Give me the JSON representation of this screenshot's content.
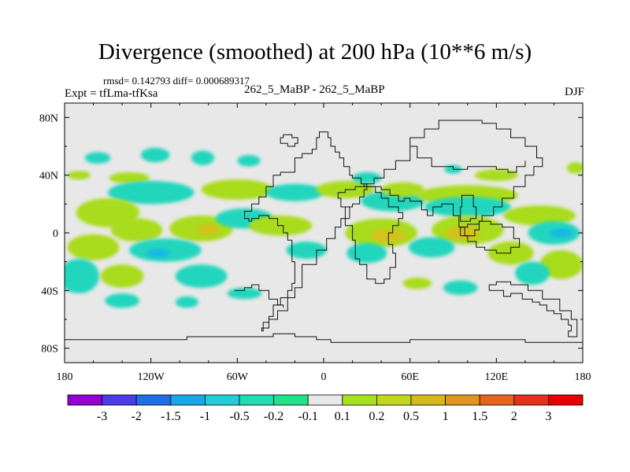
{
  "chart_data": {
    "type": "heatmap",
    "title": "Divergence (smoothed) at 200 hPa (10**6 m/s)",
    "stats_label": "rmsd= 0.142793 diff= 0.000689317",
    "experiment_label": "Expt = tfLma-tfKsa",
    "runs_label": "262_5_MaBP - 262_5_MaBP",
    "season_label": "DJF",
    "x_range": [
      -180,
      180
    ],
    "y_range": [
      -90,
      90
    ],
    "x_ticks": [
      -180,
      -120,
      -60,
      0,
      60,
      120,
      180
    ],
    "x_tick_labels": [
      "180",
      "120W",
      "60W",
      "0",
      "60E",
      "120E",
      "180"
    ],
    "y_ticks": [
      80,
      40,
      0,
      -40,
      -80
    ],
    "y_tick_labels": [
      "80N",
      "40N",
      "0",
      "40S",
      "80S"
    ],
    "colorbar": {
      "labels": [
        "-3",
        "-2",
        "-1.5",
        "-1",
        "-0.5",
        "-0.2",
        "-0.1",
        "0.1",
        "0.2",
        "0.5",
        "1",
        "1.5",
        "2",
        "3"
      ],
      "colors": [
        "#9400d3",
        "#4b3ce6",
        "#1f6ee8",
        "#18a6e6",
        "#22ccd9",
        "#20dcb4",
        "#1ee38a",
        "#e8e8e8",
        "#a6e21e",
        "#c2d81e",
        "#d4b81e",
        "#de961e",
        "#e6641e",
        "#e6301e",
        "#e60000"
      ]
    },
    "field_blobs": [
      {
        "lon": -157,
        "lat": 52,
        "rx": 9,
        "ry": 4,
        "v": -0.3
      },
      {
        "lon": -117,
        "lat": 54,
        "rx": 10,
        "ry": 5,
        "v": -0.3
      },
      {
        "lon": -84,
        "lat": 52,
        "rx": 8,
        "ry": 5,
        "v": -0.3
      },
      {
        "lon": -52,
        "lat": 50,
        "rx": 8,
        "ry": 4,
        "v": -0.3
      },
      {
        "lon": -170,
        "lat": 40,
        "rx": 8,
        "ry": 3,
        "v": 0.3
      },
      {
        "lon": -135,
        "lat": 38,
        "rx": 14,
        "ry": 4,
        "v": 0.3
      },
      {
        "lon": -120,
        "lat": 28,
        "rx": 30,
        "ry": 8,
        "v": -0.3
      },
      {
        "lon": -60,
        "lat": 30,
        "rx": 25,
        "ry": 7,
        "v": 0.3
      },
      {
        "lon": -150,
        "lat": 14,
        "rx": 22,
        "ry": 10,
        "v": 0.3
      },
      {
        "lon": -130,
        "lat": 2,
        "rx": 18,
        "ry": 8,
        "v": 0.3
      },
      {
        "lon": -85,
        "lat": 3,
        "rx": 22,
        "ry": 9,
        "v": 0.3
      },
      {
        "lon": -80,
        "lat": 2,
        "rx": 8,
        "ry": 4,
        "v": 0.6
      },
      {
        "lon": -55,
        "lat": 10,
        "rx": 20,
        "ry": 7,
        "v": -0.3
      },
      {
        "lon": -160,
        "lat": -10,
        "rx": 18,
        "ry": 9,
        "v": 0.3
      },
      {
        "lon": -110,
        "lat": -12,
        "rx": 25,
        "ry": 8,
        "v": -0.3
      },
      {
        "lon": -115,
        "lat": -14,
        "rx": 8,
        "ry": 3,
        "v": -0.6
      },
      {
        "lon": -170,
        "lat": -30,
        "rx": 14,
        "ry": 12,
        "v": -0.3
      },
      {
        "lon": -140,
        "lat": -30,
        "rx": 15,
        "ry": 8,
        "v": 0.3
      },
      {
        "lon": -85,
        "lat": -30,
        "rx": 18,
        "ry": 8,
        "v": -0.3
      },
      {
        "lon": -140,
        "lat": -47,
        "rx": 12,
        "ry": 5,
        "v": -0.3
      },
      {
        "lon": -95,
        "lat": -48,
        "rx": 8,
        "ry": 4,
        "v": -0.3
      },
      {
        "lon": -55,
        "lat": -42,
        "rx": 12,
        "ry": 4,
        "v": -0.3
      },
      {
        "lon": -20,
        "lat": 28,
        "rx": 20,
        "ry": 6,
        "v": -0.3
      },
      {
        "lon": -30,
        "lat": 5,
        "rx": 22,
        "ry": 7,
        "v": 0.3
      },
      {
        "lon": -12,
        "lat": -12,
        "rx": 14,
        "ry": 6,
        "v": -0.3
      },
      {
        "lon": 15,
        "lat": 30,
        "rx": 20,
        "ry": 6,
        "v": 0.3
      },
      {
        "lon": 30,
        "lat": 38,
        "rx": 10,
        "ry": 4,
        "v": -0.3
      },
      {
        "lon": 48,
        "lat": 22,
        "rx": 22,
        "ry": 7,
        "v": -0.3
      },
      {
        "lon": 55,
        "lat": 30,
        "rx": 15,
        "ry": 5,
        "v": 0.3
      },
      {
        "lon": 40,
        "lat": 0,
        "rx": 25,
        "ry": 10,
        "v": 0.3
      },
      {
        "lon": 45,
        "lat": -2,
        "rx": 12,
        "ry": 5,
        "v": 0.6
      },
      {
        "lon": 30,
        "lat": -14,
        "rx": 14,
        "ry": 7,
        "v": -0.3
      },
      {
        "lon": 100,
        "lat": 26,
        "rx": 35,
        "ry": 7,
        "v": 0.3
      },
      {
        "lon": 100,
        "lat": 18,
        "rx": 30,
        "ry": 7,
        "v": -0.3
      },
      {
        "lon": 100,
        "lat": 2,
        "rx": 25,
        "ry": 10,
        "v": 0.3
      },
      {
        "lon": 97,
        "lat": 0,
        "rx": 12,
        "ry": 5,
        "v": 0.6
      },
      {
        "lon": 75,
        "lat": -10,
        "rx": 16,
        "ry": 7,
        "v": -0.3
      },
      {
        "lon": 150,
        "lat": 12,
        "rx": 25,
        "ry": 7,
        "v": 0.3
      },
      {
        "lon": 160,
        "lat": 0,
        "rx": 18,
        "ry": 8,
        "v": -0.3
      },
      {
        "lon": 165,
        "lat": 0,
        "rx": 8,
        "ry": 3,
        "v": -0.6
      },
      {
        "lon": 130,
        "lat": -14,
        "rx": 16,
        "ry": 8,
        "v": 0.3
      },
      {
        "lon": 165,
        "lat": -22,
        "rx": 15,
        "ry": 10,
        "v": 0.3
      },
      {
        "lon": 145,
        "lat": -28,
        "rx": 12,
        "ry": 8,
        "v": -0.3
      },
      {
        "lon": 95,
        "lat": -38,
        "rx": 12,
        "ry": 5,
        "v": -0.3
      },
      {
        "lon": 65,
        "lat": -35,
        "rx": 10,
        "ry": 4,
        "v": 0.3
      },
      {
        "lon": 120,
        "lat": 40,
        "rx": 15,
        "ry": 4,
        "v": 0.3
      },
      {
        "lon": 175,
        "lat": 45,
        "rx": 6,
        "ry": 4,
        "v": 0.3
      },
      {
        "lon": 90,
        "lat": 44,
        "rx": 6,
        "ry": 3,
        "v": -0.3
      }
    ],
    "land_outline": [
      [
        [
          -180,
          -77
        ],
        [
          -180,
          -74
        ],
        [
          -95,
          -74
        ],
        [
          -95,
          -72
        ],
        [
          -35,
          -72
        ],
        [
          -35,
          -70
        ],
        [
          -20,
          -70
        ],
        [
          -20,
          -72
        ],
        [
          -5,
          -72
        ],
        [
          -5,
          -74
        ],
        [
          5,
          -74
        ],
        [
          5,
          -76
        ],
        [
          60,
          -76
        ],
        [
          60,
          -74
        ],
        [
          140,
          -74
        ],
        [
          140,
          -76
        ],
        [
          180,
          -76
        ]
      ],
      [
        [
          -43,
          -68
        ],
        [
          -42,
          -62
        ],
        [
          -38,
          -58
        ],
        [
          -35,
          -55
        ],
        [
          -35,
          -50
        ],
        [
          -30,
          -45
        ],
        [
          -25,
          -40
        ],
        [
          -22,
          -35
        ],
        [
          -20,
          -30
        ],
        [
          -20,
          -20
        ],
        [
          -22,
          -10
        ],
        [
          -22,
          -5
        ],
        [
          -25,
          0
        ],
        [
          -28,
          5
        ],
        [
          -32,
          10
        ],
        [
          -38,
          12
        ],
        [
          -45,
          10
        ],
        [
          -50,
          8
        ],
        [
          -52,
          10
        ],
        [
          -55,
          15
        ],
        [
          -50,
          20
        ],
        [
          -45,
          25
        ],
        [
          -40,
          32
        ],
        [
          -35,
          40
        ],
        [
          -30,
          42
        ],
        [
          -20,
          46
        ],
        [
          -20,
          52
        ],
        [
          -15,
          55
        ],
        [
          -8,
          58
        ],
        [
          -5,
          66
        ],
        [
          -3,
          70
        ],
        [
          0,
          70
        ],
        [
          3,
          66
        ],
        [
          5,
          60
        ],
        [
          8,
          56
        ],
        [
          11,
          52
        ],
        [
          14,
          46
        ],
        [
          18,
          40
        ],
        [
          20,
          38
        ],
        [
          26,
          34
        ],
        [
          30,
          30
        ],
        [
          28,
          25
        ],
        [
          25,
          20
        ],
        [
          20,
          18
        ],
        [
          15,
          10
        ],
        [
          12,
          4
        ],
        [
          8,
          -4
        ],
        [
          2,
          -12
        ],
        [
          -5,
          -22
        ],
        [
          -15,
          -38
        ],
        [
          -20,
          -45
        ],
        [
          -25,
          -54
        ],
        [
          -32,
          -60
        ],
        [
          -38,
          -66
        ],
        [
          -43,
          -68
        ]
      ],
      [
        [
          18,
          10
        ],
        [
          15,
          5
        ],
        [
          20,
          -5
        ],
        [
          22,
          -12
        ],
        [
          22,
          -18
        ],
        [
          25,
          -22
        ],
        [
          30,
          -32
        ],
        [
          36,
          -35
        ],
        [
          42,
          -32
        ],
        [
          46,
          -24
        ],
        [
          50,
          -14
        ],
        [
          48,
          -8
        ],
        [
          45,
          0
        ],
        [
          48,
          5
        ],
        [
          52,
          10
        ],
        [
          55,
          14
        ],
        [
          52,
          18
        ],
        [
          45,
          24
        ],
        [
          40,
          28
        ],
        [
          36,
          32
        ],
        [
          30,
          32
        ],
        [
          22,
          30
        ],
        [
          15,
          28
        ],
        [
          10,
          24
        ],
        [
          12,
          18
        ],
        [
          18,
          10
        ]
      ],
      [
        [
          28,
          34
        ],
        [
          35,
          38
        ],
        [
          42,
          44
        ],
        [
          50,
          50
        ],
        [
          60,
          60
        ],
        [
          60,
          66
        ],
        [
          70,
          72
        ],
        [
          80,
          78
        ],
        [
          100,
          78
        ],
        [
          110,
          76
        ],
        [
          120,
          72
        ],
        [
          130,
          66
        ],
        [
          140,
          60
        ],
        [
          148,
          52
        ],
        [
          152,
          46
        ],
        [
          146,
          40
        ],
        [
          140,
          32
        ],
        [
          132,
          24
        ],
        [
          124,
          18
        ],
        [
          118,
          12
        ],
        [
          110,
          8
        ],
        [
          108,
          2
        ],
        [
          105,
          -2
        ],
        [
          98,
          4
        ],
        [
          94,
          12
        ],
        [
          90,
          20
        ],
        [
          82,
          18
        ],
        [
          76,
          12
        ],
        [
          72,
          16
        ],
        [
          68,
          22
        ],
        [
          60,
          24
        ],
        [
          56,
          22
        ],
        [
          52,
          26
        ],
        [
          46,
          30
        ],
        [
          40,
          32
        ],
        [
          34,
          32
        ],
        [
          28,
          34
        ]
      ],
      [
        [
          95,
          -2
        ],
        [
          100,
          -6
        ],
        [
          106,
          -10
        ],
        [
          112,
          -12
        ],
        [
          120,
          -14
        ],
        [
          130,
          -10
        ],
        [
          136,
          -4
        ],
        [
          132,
          4
        ],
        [
          124,
          6
        ],
        [
          116,
          8
        ],
        [
          108,
          6
        ],
        [
          100,
          4
        ],
        [
          95,
          -2
        ]
      ],
      [
        [
          95,
          8
        ],
        [
          102,
          10
        ],
        [
          106,
          18
        ],
        [
          104,
          26
        ],
        [
          98,
          26
        ],
        [
          96,
          18
        ],
        [
          95,
          8
        ]
      ],
      [
        [
          115,
          -40
        ],
        [
          125,
          -44
        ],
        [
          130,
          -42
        ],
        [
          138,
          -46
        ],
        [
          145,
          -48
        ],
        [
          150,
          -50
        ],
        [
          155,
          -54
        ],
        [
          160,
          -56
        ],
        [
          165,
          -60
        ],
        [
          170,
          -64
        ],
        [
          172,
          -68
        ],
        [
          170,
          -72
        ],
        [
          176,
          -72
        ],
        [
          176,
          -60
        ],
        [
          172,
          -54
        ],
        [
          164,
          -46
        ],
        [
          152,
          -40
        ],
        [
          142,
          -36
        ],
        [
          130,
          -34
        ],
        [
          120,
          -36
        ],
        [
          115,
          -40
        ]
      ],
      [
        [
          -62,
          -40
        ],
        [
          -55,
          -38
        ],
        [
          -50,
          -36
        ],
        [
          -45,
          -40
        ],
        [
          -38,
          -46
        ],
        [
          -32,
          -50
        ],
        [
          -28,
          -52
        ]
      ],
      [
        [
          -25,
          60
        ],
        [
          -20,
          62
        ],
        [
          -18,
          66
        ],
        [
          -22,
          68
        ],
        [
          -28,
          66
        ],
        [
          -30,
          62
        ],
        [
          -25,
          60
        ]
      ],
      [
        [
          60,
          60
        ],
        [
          65,
          52
        ],
        [
          75,
          46
        ],
        [
          90,
          44
        ],
        [
          100,
          46
        ],
        [
          110,
          46
        ],
        [
          120,
          44
        ],
        [
          128,
          42
        ],
        [
          134,
          46
        ],
        [
          140,
          50
        ]
      ]
    ]
  }
}
